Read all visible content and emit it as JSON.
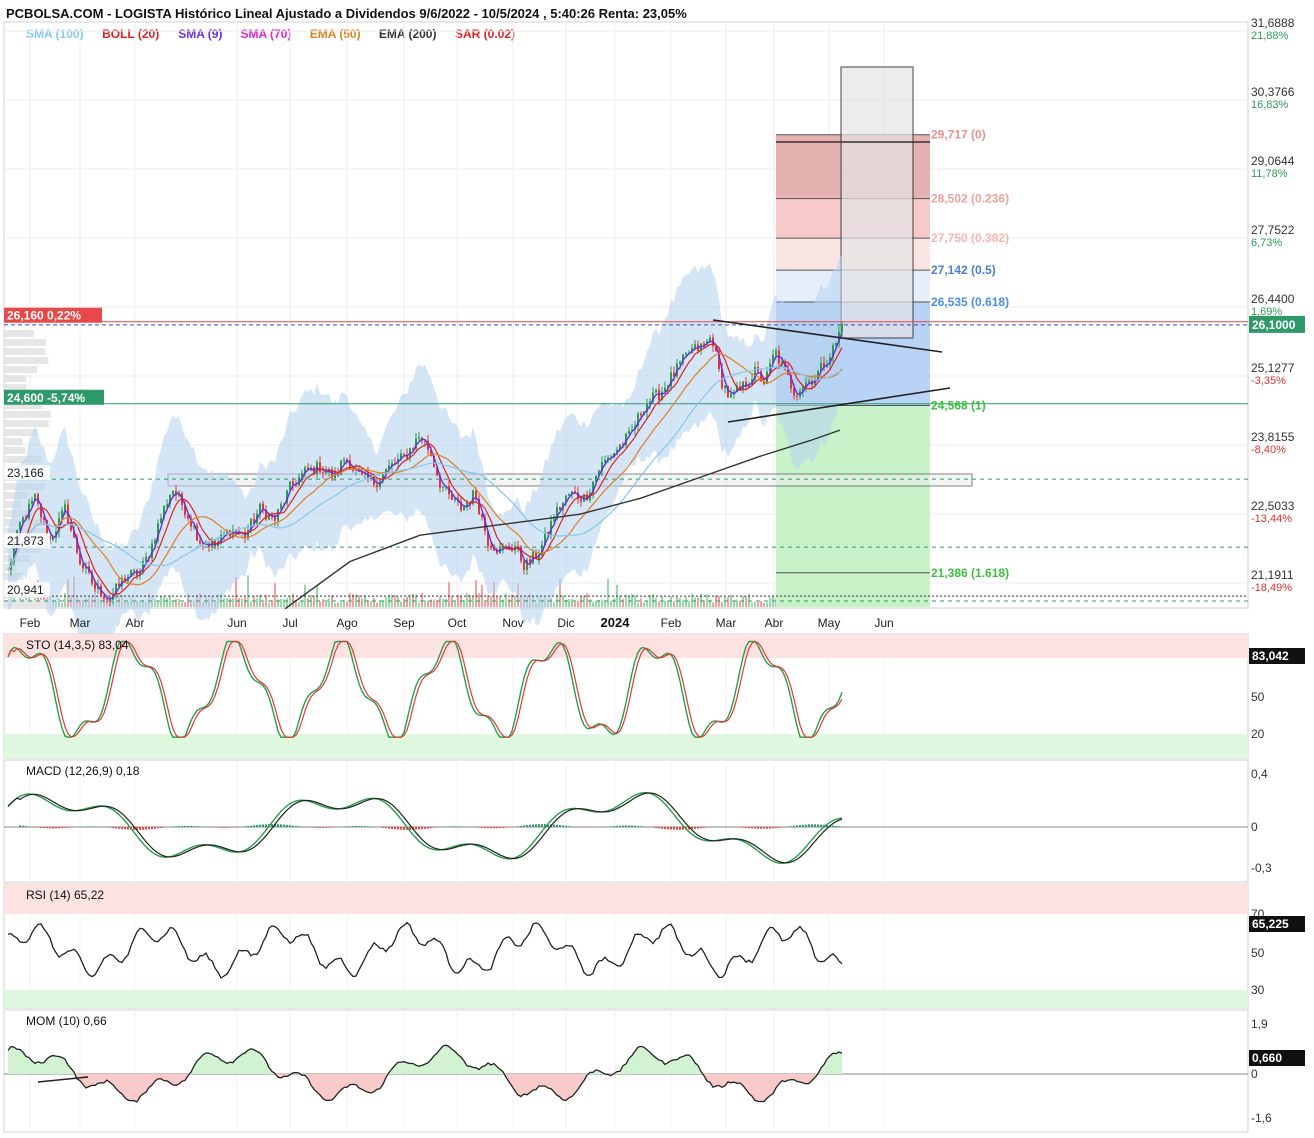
{
  "title": "PCBOLSA.COM - LOGISTA Histórico Lineal Ajustado a Dividendos 9/6/2022 - 10/5/2024 , 5:40:26 Renta: 23,05%",
  "indicators": [
    {
      "text": "SMA (100)",
      "color": "#87c8ee"
    },
    {
      "text": "BOLL (20)",
      "color": "#e02020"
    },
    {
      "text": "SMA (9)",
      "color": "#6a2cdc"
    },
    {
      "text": "SMA (70)",
      "color": "#e020c8"
    },
    {
      "text": "EMA (50)",
      "color": "#e08020"
    },
    {
      "text": "EMA (200)",
      "color": "#333333"
    },
    {
      "text": "SAR (0.02)",
      "color": "#e02020"
    }
  ],
  "chart_data": {
    "type": "line",
    "x_ticks": [
      "Feb",
      "Mar",
      "Abr",
      "Jun",
      "Jul",
      "Ago",
      "Sep",
      "Oct",
      "Nov",
      "Dic",
      "2024",
      "Feb",
      "Mar",
      "Abr",
      "May",
      "Jun"
    ],
    "y_ticks": [
      {
        "value": 31.6888,
        "label": "31,6888",
        "pct": "21,88%",
        "pct_color": "#2e9a5c"
      },
      {
        "value": 30.3766,
        "label": "30,3766",
        "pct": "16,83%",
        "pct_color": "#2e9a5c"
      },
      {
        "value": 29.0644,
        "label": "29,0644",
        "pct": "11,78%",
        "pct_color": "#2e9a5c"
      },
      {
        "value": 27.7522,
        "label": "27,7522",
        "pct": "6,73%",
        "pct_color": "#2e9a5c"
      },
      {
        "value": 26.44,
        "label": "26,4400",
        "pct": "1,69%",
        "pct_color": "#2e9a5c"
      },
      {
        "value": 25.1277,
        "label": "25,1277",
        "pct": "-3,35%",
        "pct_color": "#e03030"
      },
      {
        "value": 23.8155,
        "label": "23,8155",
        "pct": "-8,40%",
        "pct_color": "#e03030"
      },
      {
        "value": 22.5033,
        "label": "22,5033",
        "pct": "-13,44%",
        "pct_color": "#e03030"
      },
      {
        "value": 21.1911,
        "label": "21,1911",
        "pct": "-18,49%",
        "pct_color": "#e03030"
      }
    ],
    "last_price": {
      "value": 26.1,
      "label": "26,1000"
    },
    "fibonacci": [
      {
        "value": 29.717,
        "label": "29,717 (0)",
        "color": "#e89090"
      },
      {
        "value": 28.502,
        "label": "28,502 (0.236)",
        "color": "#f0a0a0"
      },
      {
        "value": 27.75,
        "label": "27,750 (0.382)",
        "color": "#f4b4b4"
      },
      {
        "value": 27.142,
        "label": "27,142 (0.5)",
        "color": "#4a7fd0"
      },
      {
        "value": 26.535,
        "label": "26,535 (0.618)",
        "color": "#4a90e0"
      },
      {
        "value": 24.568,
        "label": "24,568 (1)",
        "color": "#3cc03c"
      },
      {
        "value": 21.386,
        "label": "21,386 (1.618)",
        "color": "#3cc03c"
      }
    ],
    "levels": [
      {
        "value": 26.16,
        "label": "26,160",
        "pct": "0,22%",
        "color": "#e84848"
      },
      {
        "value": 24.6,
        "label": "24,600",
        "pct": "-5,74%",
        "color": "#2e9a6a"
      },
      {
        "value": 23.166,
        "label": "23,166"
      },
      {
        "value": 21.873,
        "label": "21,873"
      },
      {
        "value": 20.941,
        "label": "20,941"
      }
    ],
    "ylim": [
      20.7,
      31.8
    ]
  },
  "panels": {
    "sto": {
      "label": "STO (14,3,5)",
      "value": "83,04",
      "badge": "83,042",
      "ticks": [
        "50",
        "20"
      ]
    },
    "macd": {
      "label": "MACD (12,26,9)",
      "value": "0,18",
      "ticks": [
        "0,4",
        "0",
        "-0,3"
      ]
    },
    "rsi": {
      "label": "RSI (14)",
      "value": "65,22",
      "badge": "65,225",
      "ticks": [
        "70",
        "50",
        "30"
      ]
    },
    "mom": {
      "label": "MOM (10)",
      "value": "0,66",
      "badge": "0,660",
      "ticks": [
        "1,9",
        "0",
        "-1,6"
      ]
    }
  }
}
